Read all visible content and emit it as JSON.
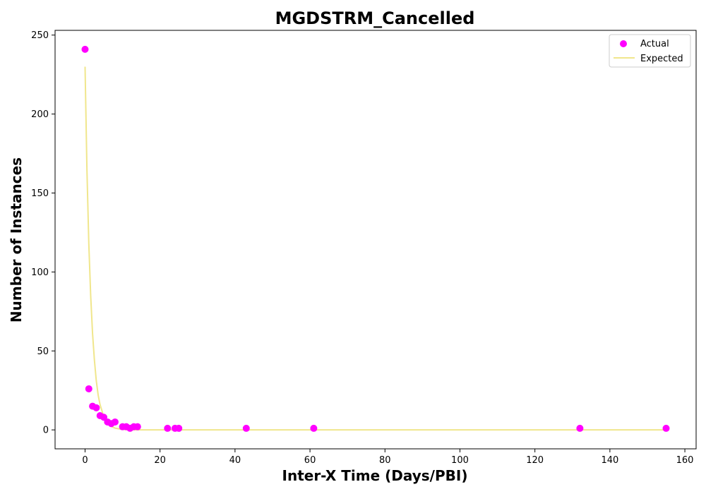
{
  "chart_data": {
    "type": "scatter",
    "title": "MGDSTRM_Cancelled",
    "xlabel": "Inter-X Time (Days/PBI)",
    "ylabel": "Number of Instances",
    "xlim": [
      -8,
      163
    ],
    "ylim": [
      -12,
      253
    ],
    "xticks": [
      0,
      20,
      40,
      60,
      80,
      100,
      120,
      140,
      160
    ],
    "yticks": [
      0,
      50,
      100,
      150,
      200,
      250
    ],
    "grid": false,
    "legend_position": "top-right",
    "series": [
      {
        "name": "Actual",
        "kind": "scatter",
        "color": "#ff00ff",
        "x": [
          0,
          1,
          2,
          3,
          4,
          5,
          6,
          7,
          8,
          10,
          11,
          12,
          13,
          14,
          22,
          24,
          25,
          43,
          61,
          132,
          155
        ],
        "y": [
          241,
          26,
          15,
          14,
          9,
          8,
          5,
          4,
          5,
          2,
          2,
          1,
          2,
          2,
          1,
          1,
          1,
          1,
          1,
          1,
          1
        ]
      },
      {
        "name": "Expected",
        "kind": "line",
        "color": "#f0e68c",
        "x": [
          0,
          0.5,
          1,
          1.5,
          2,
          2.5,
          3,
          3.5,
          4,
          5,
          6,
          7,
          8,
          10,
          12,
          15,
          20,
          30,
          40,
          60,
          80,
          100,
          120,
          140,
          155
        ],
        "y": [
          230,
          165,
          118,
          85,
          61,
          44,
          31,
          22,
          16,
          8.3,
          4.3,
          2.2,
          1.1,
          0.3,
          0.08,
          0,
          0,
          0,
          0,
          0,
          0,
          0,
          0,
          0,
          0
        ]
      }
    ]
  }
}
